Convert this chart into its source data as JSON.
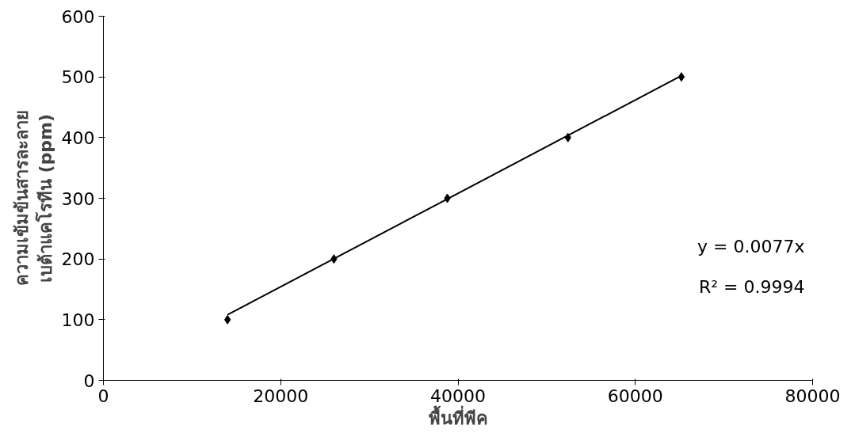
{
  "chart_data": {
    "type": "scatter",
    "xlabel": "พื้นที่พีค",
    "ylabel": "ความเข้มข้นสารละลาย\nเบต้าแคโรทีน (ppm)",
    "xlim": [
      0,
      80000
    ],
    "xticks": [
      0,
      20000,
      40000,
      60000,
      80000
    ],
    "ylim": [
      0,
      600
    ],
    "yticks": [
      0,
      100,
      200,
      300,
      400,
      500,
      600
    ],
    "grid": false,
    "series": [
      {
        "marker": "diamond",
        "color": "#000000",
        "x": [
          14000,
          26000,
          38800,
          52400,
          65200
        ],
        "values": [
          100,
          200,
          300,
          400,
          500
        ]
      },
      {
        "type": "line",
        "marker": "none",
        "color": "#000000",
        "x": [
          14000,
          65200
        ],
        "values": [
          108,
          502
        ]
      }
    ],
    "annotations": [
      "y = 0.0077x",
      "R² = 0.9994"
    ]
  }
}
